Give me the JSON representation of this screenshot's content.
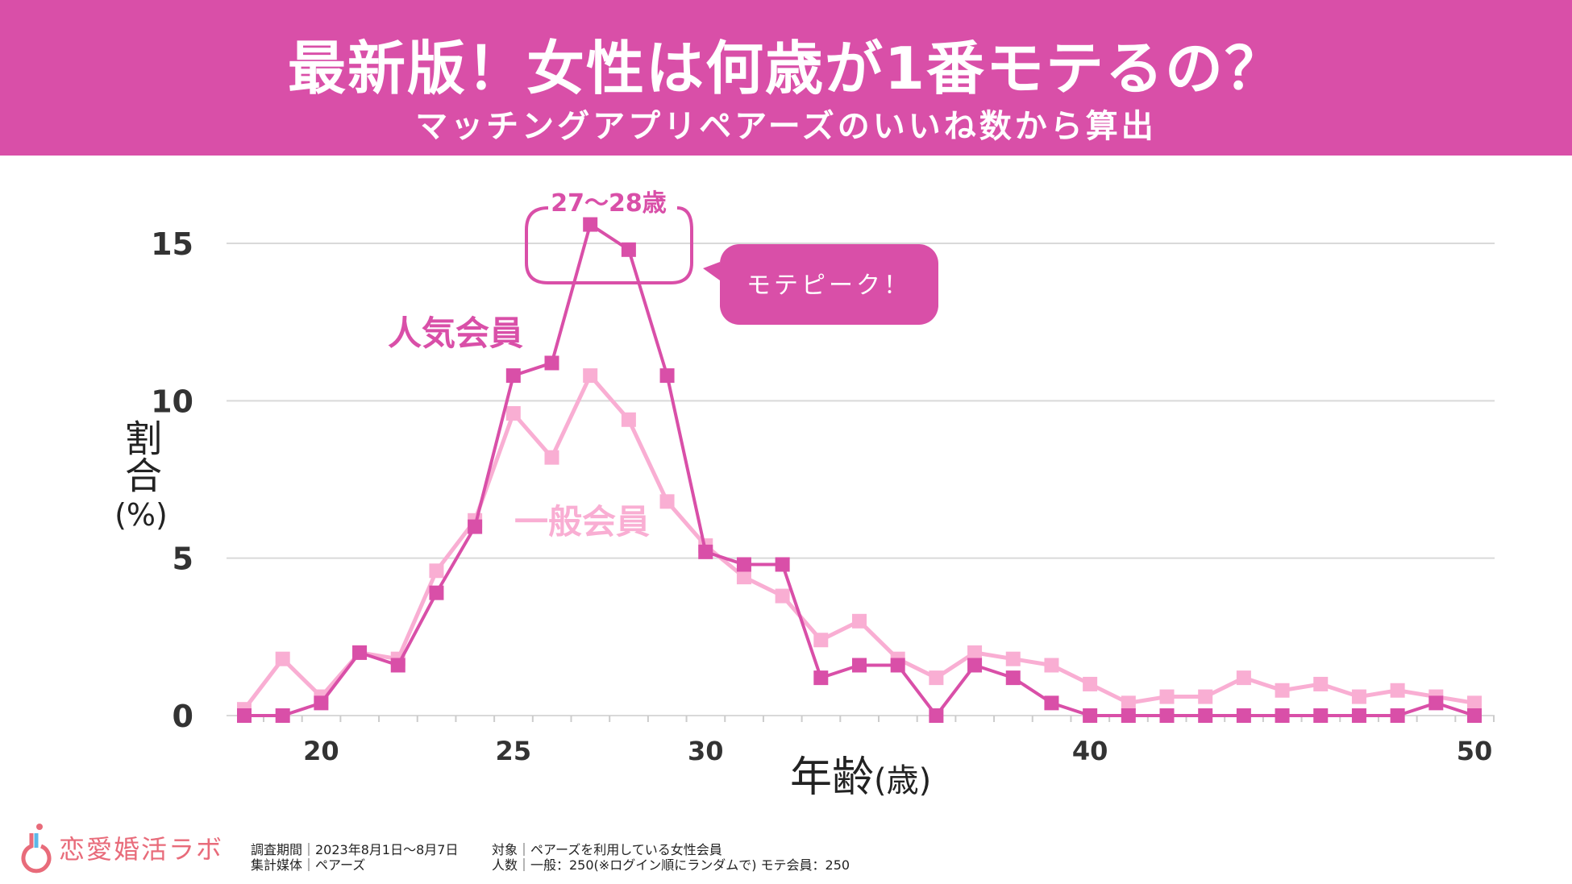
{
  "header": {
    "title": "最新版！女性は何歳が1番モテるの？",
    "subtitle": "マッチングアプリペアーズのいいね数から算出"
  },
  "annotations": {
    "peak_range": "27〜28歳",
    "callout": "モテピーク！",
    "popular_label": "人気会員",
    "general_label": "一般会員"
  },
  "footer": {
    "logo": "恋愛婚活ラボ",
    "period": "調査期間｜2023年8月1日〜8月7日",
    "media": "集計媒体｜ペアーズ",
    "target": "対象｜ペアーズを利用している女性会員",
    "sample": "人数｜一般：250(※ログイン順にランダムで) モテ会員：250"
  },
  "colors": {
    "header": "#d94fa8",
    "popular": "#d94fa8",
    "general": "#f9aed3",
    "grid": "#d9d9d9"
  },
  "chart_data": {
    "type": "line",
    "title": "最新版！女性は何歳が1番モテるの？",
    "xlabel": "年齢",
    "xlabel_unit": "(歳)",
    "ylabel": "割合",
    "ylabel_unit": "(%)",
    "xlim": [
      18,
      50
    ],
    "ylim": [
      0,
      15
    ],
    "xticks": [
      20,
      25,
      30,
      40,
      50
    ],
    "yticks": [
      0,
      5,
      10,
      15
    ],
    "grid": true,
    "x": [
      18,
      19,
      20,
      21,
      22,
      23,
      24,
      25,
      26,
      27,
      28,
      29,
      30,
      31,
      32,
      33,
      34,
      35,
      36,
      37,
      38,
      39,
      40,
      41,
      42,
      43,
      44,
      45,
      46,
      47,
      48,
      49,
      50
    ],
    "series": [
      {
        "name": "一般会員",
        "color": "#f9aed3",
        "values": [
          0.2,
          1.8,
          0.6,
          2.0,
          1.8,
          4.6,
          6.2,
          9.6,
          8.2,
          10.8,
          9.4,
          6.8,
          5.4,
          4.4,
          3.8,
          2.4,
          3.0,
          1.8,
          1.2,
          2.0,
          1.8,
          1.6,
          1.0,
          0.4,
          0.6,
          0.6,
          1.2,
          0.8,
          1.0,
          0.6,
          0.8,
          0.6,
          0.4
        ]
      },
      {
        "name": "人気会員",
        "color": "#d94fa8",
        "values": [
          0,
          0,
          0.4,
          2.0,
          1.6,
          3.9,
          6.0,
          10.8,
          11.2,
          15.6,
          14.8,
          10.8,
          5.2,
          4.8,
          4.8,
          1.2,
          1.6,
          1.6,
          0,
          1.6,
          1.2,
          0.4,
          0,
          0,
          0,
          0,
          0,
          0,
          0,
          0,
          0,
          0.4,
          0
        ]
      }
    ]
  }
}
